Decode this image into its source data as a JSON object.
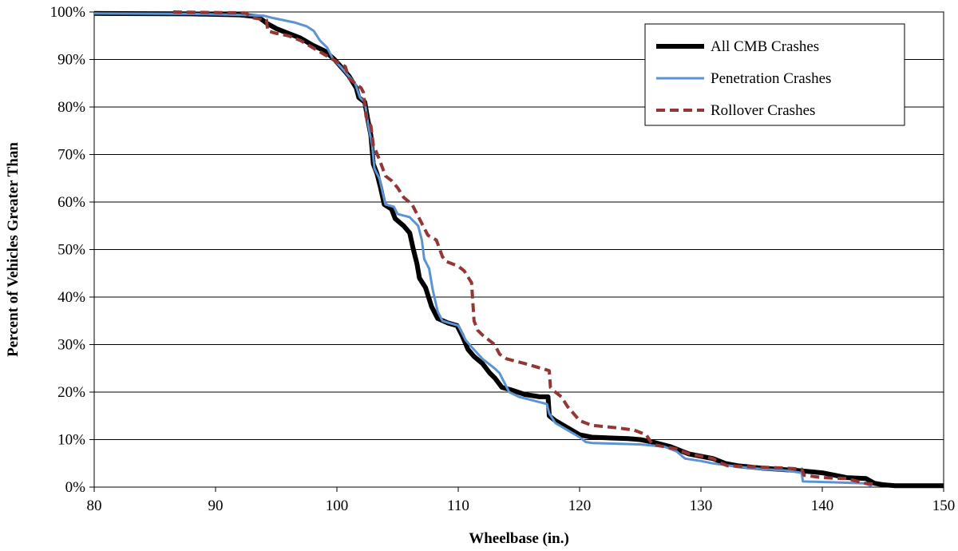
{
  "chart_data": {
    "type": "line",
    "title": "",
    "xlabel": "Wheelbase (in.)",
    "ylabel": "Percent of Vehicles Greater Than",
    "xlim": [
      80,
      150
    ],
    "ylim": [
      0,
      100
    ],
    "x_ticks": [
      80,
      90,
      100,
      110,
      120,
      130,
      140,
      150
    ],
    "x_tick_labels": [
      "80",
      "90",
      "100",
      "110",
      "120",
      "130",
      "140",
      "150"
    ],
    "y_ticks": [
      0,
      10,
      20,
      30,
      40,
      50,
      60,
      70,
      80,
      90,
      100
    ],
    "y_tick_labels": [
      "0%",
      "10%",
      "20%",
      "30%",
      "40%",
      "50%",
      "60%",
      "70%",
      "80%",
      "90%",
      "100%"
    ],
    "grid": "horizontal",
    "legend_position": "top-right",
    "series": [
      {
        "name": "All CMB Crashes",
        "color": "#000000",
        "style": "solid-thick",
        "points": [
          [
            80,
            99.7
          ],
          [
            88,
            99.6
          ],
          [
            92,
            99.4
          ],
          [
            93.5,
            99
          ],
          [
            94.3,
            97.5
          ],
          [
            95,
            96.5
          ],
          [
            96,
            95.5
          ],
          [
            97,
            94.5
          ],
          [
            98,
            93
          ],
          [
            99,
            91.8
          ],
          [
            99.8,
            90
          ],
          [
            100.5,
            88
          ],
          [
            101,
            86.5
          ],
          [
            101.6,
            84
          ],
          [
            101.8,
            82
          ],
          [
            102.3,
            81
          ],
          [
            102.5,
            78
          ],
          [
            102.8,
            74
          ],
          [
            103,
            68
          ],
          [
            103.3,
            66
          ],
          [
            103.6,
            63
          ],
          [
            103.9,
            59.5
          ],
          [
            104.5,
            58.5
          ],
          [
            104.8,
            56.5
          ],
          [
            105.5,
            55
          ],
          [
            106,
            53.5
          ],
          [
            106.3,
            50
          ],
          [
            106.6,
            47
          ],
          [
            106.8,
            44
          ],
          [
            107.3,
            42
          ],
          [
            107.8,
            38
          ],
          [
            108.3,
            35.5
          ],
          [
            109.2,
            34.5
          ],
          [
            109.9,
            34
          ],
          [
            110.3,
            32
          ],
          [
            110.8,
            29
          ],
          [
            111.3,
            27.5
          ],
          [
            112,
            26
          ],
          [
            112.6,
            24
          ],
          [
            113,
            23
          ],
          [
            113.6,
            21
          ],
          [
            114.3,
            20.5
          ],
          [
            115.5,
            19.5
          ],
          [
            116.7,
            19
          ],
          [
            117.4,
            19
          ],
          [
            117.5,
            15
          ],
          [
            118,
            14
          ],
          [
            119,
            12.5
          ],
          [
            120,
            11
          ],
          [
            121,
            10.5
          ],
          [
            124,
            10.2
          ],
          [
            125,
            10
          ],
          [
            126,
            9.5
          ],
          [
            127.5,
            8.5
          ],
          [
            129,
            7
          ],
          [
            131,
            6
          ],
          [
            132,
            5
          ],
          [
            133,
            4.5
          ],
          [
            135,
            4
          ],
          [
            138,
            3.5
          ],
          [
            140,
            3
          ],
          [
            141,
            2.5
          ],
          [
            142,
            2
          ],
          [
            143.6,
            1.8
          ],
          [
            144.3,
            0.8
          ],
          [
            145,
            0.5
          ],
          [
            146,
            0.3
          ],
          [
            150,
            0.3
          ]
        ]
      },
      {
        "name": "Penetration Crashes",
        "color": "#5b93d3",
        "style": "solid",
        "points": [
          [
            80,
            99.7
          ],
          [
            88,
            99.6
          ],
          [
            92,
            99.4
          ],
          [
            94,
            99.2
          ],
          [
            94.6,
            98.8
          ],
          [
            96.5,
            97.8
          ],
          [
            97.5,
            97
          ],
          [
            98.1,
            96
          ],
          [
            98.6,
            94
          ],
          [
            99.2,
            92.5
          ],
          [
            99.7,
            90
          ],
          [
            100.3,
            88.5
          ],
          [
            100.8,
            87
          ],
          [
            101.5,
            85
          ],
          [
            101.9,
            82
          ],
          [
            102.3,
            81
          ],
          [
            102.6,
            76
          ],
          [
            102.9,
            72
          ],
          [
            103.1,
            67
          ],
          [
            103.5,
            65
          ],
          [
            104,
            59.5
          ],
          [
            104.7,
            59
          ],
          [
            105,
            57.5
          ],
          [
            106,
            56.8
          ],
          [
            106.7,
            55
          ],
          [
            107,
            52
          ],
          [
            107.2,
            48
          ],
          [
            107.6,
            46
          ],
          [
            107.9,
            41.5
          ],
          [
            108.3,
            37
          ],
          [
            108.7,
            35
          ],
          [
            109.3,
            34.5
          ],
          [
            110,
            34
          ],
          [
            110.6,
            31
          ],
          [
            111.1,
            29.5
          ],
          [
            112,
            27
          ],
          [
            113,
            25
          ],
          [
            113.4,
            24
          ],
          [
            114.2,
            20
          ],
          [
            115,
            19
          ],
          [
            117.3,
            17.5
          ],
          [
            117.5,
            15.5
          ],
          [
            118,
            13.5
          ],
          [
            119,
            12
          ],
          [
            120,
            10.5
          ],
          [
            120.5,
            9.5
          ],
          [
            121,
            9.3
          ],
          [
            125,
            9
          ],
          [
            127,
            8.5
          ],
          [
            128,
            7.5
          ],
          [
            128.7,
            6
          ],
          [
            130,
            5.5
          ],
          [
            131,
            5
          ],
          [
            133,
            4.3
          ],
          [
            135,
            3.8
          ],
          [
            137,
            3.5
          ],
          [
            138.3,
            3
          ],
          [
            138.4,
            1.2
          ],
          [
            141,
            1
          ],
          [
            143.5,
            0.8
          ],
          [
            144.1,
            0.2
          ]
        ]
      },
      {
        "name": "Rollover Crashes",
        "color": "#943634",
        "style": "dashed",
        "points": [
          [
            86.5,
            100
          ],
          [
            92.5,
            99.8
          ],
          [
            93,
            98.8
          ],
          [
            94.2,
            98.3
          ],
          [
            94.3,
            96
          ],
          [
            95,
            95.5
          ],
          [
            96,
            95
          ],
          [
            97,
            94
          ],
          [
            98,
            92.5
          ],
          [
            99,
            91
          ],
          [
            100,
            89.5
          ],
          [
            100.7,
            88.5
          ],
          [
            101,
            86
          ],
          [
            101.5,
            85
          ],
          [
            102,
            84
          ],
          [
            102.2,
            83
          ],
          [
            102.4,
            78
          ],
          [
            102.8,
            76
          ],
          [
            103,
            72
          ],
          [
            103.5,
            69
          ],
          [
            104,
            65.5
          ],
          [
            104.5,
            64.5
          ],
          [
            105,
            63
          ],
          [
            105.5,
            61
          ],
          [
            106.2,
            59.5
          ],
          [
            106.7,
            57
          ],
          [
            107,
            55.5
          ],
          [
            107.5,
            53
          ],
          [
            108.2,
            52
          ],
          [
            108.7,
            48.5
          ],
          [
            109,
            47.5
          ],
          [
            110,
            46.5
          ],
          [
            110.5,
            45.5
          ],
          [
            111.1,
            43
          ],
          [
            111.3,
            35
          ],
          [
            111.6,
            33
          ],
          [
            112,
            32
          ],
          [
            113,
            30
          ],
          [
            113.4,
            28
          ],
          [
            114,
            27
          ],
          [
            115.5,
            26
          ],
          [
            117.5,
            24.5
          ],
          [
            117.6,
            21
          ],
          [
            118,
            20
          ],
          [
            118.5,
            19
          ],
          [
            119,
            17
          ],
          [
            120,
            14
          ],
          [
            121,
            13
          ],
          [
            123,
            12.5
          ],
          [
            124.5,
            12
          ],
          [
            125.5,
            11
          ],
          [
            126,
            9
          ],
          [
            128,
            8
          ],
          [
            129,
            7
          ],
          [
            130,
            6.5
          ],
          [
            131,
            6
          ],
          [
            131.7,
            5
          ],
          [
            132.2,
            4.5
          ],
          [
            137,
            4
          ],
          [
            138.3,
            3.8
          ],
          [
            138.5,
            2.5
          ],
          [
            140,
            2
          ],
          [
            142,
            1.8
          ],
          [
            143.5,
            0.8
          ],
          [
            144.4,
            0.6
          ]
        ]
      }
    ]
  }
}
